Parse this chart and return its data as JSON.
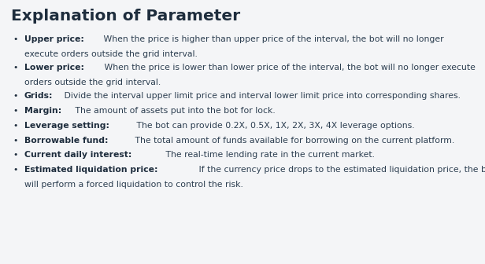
{
  "title": "Explanation of Parameter",
  "title_color": "#1e2d3d",
  "title_fontsize": 14.5,
  "background_color": "#f4f5f7",
  "text_color": "#2c3e50",
  "bold_color": "#1e2d3d",
  "font_size": 7.8,
  "items": [
    {
      "bold": "Upper price:",
      "normal": " When the price is higher than upper price of the interval, the bot will no longer",
      "continuation": "execute orders outside the grid interval."
    },
    {
      "bold": "Lower price:",
      "normal": " When the price is lower than lower price of the interval, the bot will no longer execute",
      "continuation": "orders outside the grid interval."
    },
    {
      "bold": "Grids:",
      "normal": " Divide the interval upper limit price and interval lower limit price into corresponding shares.",
      "continuation": null
    },
    {
      "bold": "Margin:",
      "normal": " The amount of assets put into the bot for lock.",
      "continuation": null
    },
    {
      "bold": "Leverage setting:",
      "normal": " The bot can provide 0.2X, 0.5X, 1X, 2X, 3X, 4X leverage options.",
      "continuation": null
    },
    {
      "bold": "Borrowable fund:",
      "normal": " The total amount of funds available for borrowing on the current platform.",
      "continuation": null
    },
    {
      "bold": "Current daily interest:",
      "normal": " The real-time lending rate in the current market.",
      "continuation": null
    },
    {
      "bold": "Estimated liquidation price:",
      "normal": " If the currency price drops to the estimated liquidation price, the bot",
      "continuation": "will perform a forced liquidation to control the risk."
    }
  ]
}
